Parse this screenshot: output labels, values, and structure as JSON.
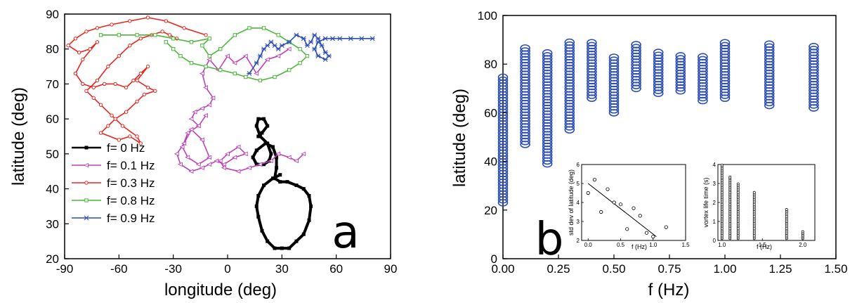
{
  "chart_data": [
    {
      "type": "line",
      "panel_label": "a",
      "xlabel": "longitude (deg)",
      "ylabel": "latitude (deg)",
      "xlim": [
        -90,
        90
      ],
      "ylim": [
        20,
        90
      ],
      "xticks": [
        "-90",
        "-60",
        "-30",
        "0",
        "30",
        "60",
        "90"
      ],
      "yticks": [
        "20",
        "30",
        "40",
        "50",
        "60",
        "70",
        "80",
        "90"
      ],
      "legend_position": "lower-left",
      "series": [
        {
          "name": "f= 0   Hz",
          "color": "#000000",
          "marker": "square",
          "x": [
            17,
            19,
            22,
            20,
            17,
            16,
            18,
            22,
            24,
            23,
            20,
            16,
            14,
            16,
            21,
            25,
            27,
            27,
            26,
            29,
            33,
            38,
            42,
            45,
            46,
            45,
            42,
            38,
            34,
            30,
            26,
            22,
            19,
            17,
            16,
            17,
            20,
            25,
            29
          ],
          "y": [
            55,
            56,
            58,
            60,
            60,
            58,
            55,
            53,
            50,
            48,
            47,
            47,
            49,
            51,
            53,
            52,
            49,
            46,
            43,
            42,
            42,
            41,
            40,
            38,
            35,
            31,
            27,
            25,
            23,
            23,
            23,
            25,
            28,
            32,
            35,
            38,
            41,
            43,
            44
          ]
        },
        {
          "name": "f= 0.1 Hz",
          "color": "#c040b8",
          "marker": "triangle-left",
          "x": [
            34,
            28,
            22,
            16,
            10,
            4,
            0,
            -5,
            -10,
            -14,
            -12,
            -8,
            -10,
            -14,
            -18,
            -20,
            -16,
            -12,
            -16,
            -22,
            -25,
            -22,
            -16,
            -10,
            -14,
            -20,
            -24,
            -28,
            -26,
            -20,
            -14,
            -10,
            -6,
            -2,
            4,
            10,
            6,
            0,
            -4,
            -2,
            6,
            12,
            18,
            24,
            28,
            34,
            38,
            42
          ],
          "y": [
            80,
            78,
            77,
            73,
            78,
            76,
            78,
            74,
            77,
            73,
            69,
            66,
            64,
            63,
            62,
            60,
            58,
            61,
            58,
            56,
            52,
            49,
            47,
            49,
            54,
            57,
            53,
            50,
            47,
            45,
            46,
            47,
            48,
            47,
            49,
            50,
            52,
            50,
            48,
            46,
            45,
            46,
            47,
            48,
            50,
            49,
            48,
            50
          ]
        },
        {
          "name": "f= 0.3 Hz",
          "color": "#e8261e",
          "marker": "circle",
          "x": [
            -12,
            -24,
            -34,
            -44,
            -54,
            -64,
            -72,
            -78,
            -84,
            -88,
            -82,
            -76,
            -72,
            -80,
            -84,
            -80,
            -74,
            -68,
            -62,
            -56,
            -52,
            -48,
            -44,
            -50,
            -44,
            -40,
            -46,
            -50,
            -56,
            -62,
            -66,
            -70,
            -60,
            -54,
            -48,
            -50,
            -58,
            -64,
            -70,
            -74,
            -78,
            -72,
            -66,
            -60,
            -54,
            -48,
            -42,
            -36,
            -32,
            -28
          ],
          "y": [
            84,
            86,
            88,
            89,
            88,
            87,
            86,
            85,
            83,
            81,
            79,
            80,
            82,
            77,
            73,
            70,
            69,
            70,
            70,
            69,
            71,
            73,
            75,
            71,
            69,
            68,
            67,
            65,
            62,
            60,
            58,
            56,
            54,
            55,
            53,
            55,
            58,
            61,
            64,
            66,
            68,
            71,
            75,
            78,
            81,
            83,
            84,
            85,
            84,
            83
          ]
        },
        {
          "name": "f= 0.8 Hz",
          "color": "#4cb83a",
          "marker": "square-open",
          "x": [
            -70,
            -60,
            -50,
            -40,
            -30,
            -20,
            -10,
            -14,
            -10,
            -4,
            4,
            12,
            20,
            28,
            34,
            40,
            44,
            40,
            34,
            26,
            18,
            10,
            4,
            -4,
            -12,
            -20,
            -26,
            -30,
            -34
          ],
          "y": [
            84,
            84,
            84,
            84,
            83,
            82,
            83,
            81,
            78,
            80,
            84,
            86,
            86,
            84,
            82,
            80,
            78,
            76,
            74,
            72,
            71,
            72,
            73,
            74,
            75,
            76,
            78,
            80,
            82
          ]
        },
        {
          "name": "f= 0.9 Hz",
          "color": "#2e4fb4",
          "marker": "star",
          "x": [
            12,
            16,
            18,
            20,
            22,
            24,
            26,
            28,
            30,
            34,
            38,
            42,
            44,
            46,
            48,
            50,
            52,
            54,
            56,
            54,
            50,
            48,
            50,
            54,
            58,
            62,
            68,
            74,
            80
          ],
          "y": [
            73,
            76,
            78,
            80,
            81,
            82,
            81,
            80,
            81,
            82,
            84,
            83,
            81,
            82,
            84,
            83,
            81,
            79,
            78,
            77,
            78,
            80,
            82,
            83,
            83,
            83,
            83,
            83,
            83
          ]
        }
      ]
    },
    {
      "type": "scatter",
      "panel_label": "b",
      "xlabel": "f (Hz)",
      "ylabel": "latitude (deg)",
      "xlim": [
        0,
        1.5
      ],
      "ylim": [
        0,
        100
      ],
      "xticks": [
        "0.00",
        "0.25",
        "0.50",
        "0.75",
        "1.00",
        "1.25",
        "1.50"
      ],
      "yticks": [
        "0",
        "20",
        "40",
        "60",
        "80",
        "100"
      ],
      "marker_color": "#2e4fb4",
      "columns": [
        {
          "f": 0.0,
          "lat_min": 23,
          "lat_max": 75
        },
        {
          "f": 0.1,
          "lat_min": 47,
          "lat_max": 87
        },
        {
          "f": 0.2,
          "lat_min": 39,
          "lat_max": 85
        },
        {
          "f": 0.3,
          "lat_min": 53,
          "lat_max": 90
        },
        {
          "f": 0.4,
          "lat_min": 66,
          "lat_max": 89
        },
        {
          "f": 0.5,
          "lat_min": 60,
          "lat_max": 83
        },
        {
          "f": 0.6,
          "lat_min": 70,
          "lat_max": 89
        },
        {
          "f": 0.7,
          "lat_min": 68,
          "lat_max": 85
        },
        {
          "f": 0.8,
          "lat_min": 69,
          "lat_max": 84
        },
        {
          "f": 0.9,
          "lat_min": 65,
          "lat_max": 83
        },
        {
          "f": 1.0,
          "lat_min": 66,
          "lat_max": 89
        },
        {
          "f": 1.2,
          "lat_min": 63,
          "lat_max": 89
        },
        {
          "f": 1.4,
          "lat_min": 62,
          "lat_max": 88
        }
      ],
      "insets": [
        {
          "type": "scatter",
          "xlabel": "f (Hz)",
          "ylabel": "std dev of latitude (deg)",
          "xlim": [
            -0.1,
            1.5
          ],
          "ylim": [
            2,
            6
          ],
          "xticks": [
            "0.0",
            "0.5",
            "1.0",
            "1.5"
          ],
          "yticks": [
            "2",
            "3",
            "4",
            "5",
            "6"
          ],
          "x": [
            0.0,
            0.1,
            0.2,
            0.3,
            0.4,
            0.5,
            0.6,
            0.7,
            0.8,
            0.9,
            1.0,
            1.2
          ],
          "y": [
            4.5,
            5.2,
            3.5,
            4.7,
            4.0,
            3.9,
            2.6,
            3.7,
            3.3,
            2.4,
            2.2,
            2.7
          ],
          "fit_line": {
            "x": [
              0.0,
              1.05
            ],
            "y": [
              5.0,
              2.2
            ]
          }
        },
        {
          "type": "scatter",
          "xlabel": "f (Hz)",
          "ylabel": "vortex life time (s)",
          "xlim": [
            0.95,
            2.15
          ],
          "ylim": [
            0,
            4
          ],
          "xticks": [
            "1.0",
            "1.5",
            "2.0"
          ],
          "yticks": [
            "0",
            "1",
            "2",
            "3",
            "4"
          ],
          "columns": [
            {
              "f": 1.0,
              "min": 0.1,
              "max": 4.0
            },
            {
              "f": 1.1,
              "min": 0.1,
              "max": 3.4
            },
            {
              "f": 1.2,
              "min": 0.1,
              "max": 3.0
            },
            {
              "f": 1.4,
              "min": 0.1,
              "max": 2.6
            },
            {
              "f": 1.8,
              "min": 0.1,
              "max": 1.7
            },
            {
              "f": 2.0,
              "min": 0.1,
              "max": 0.5
            }
          ]
        }
      ]
    }
  ]
}
